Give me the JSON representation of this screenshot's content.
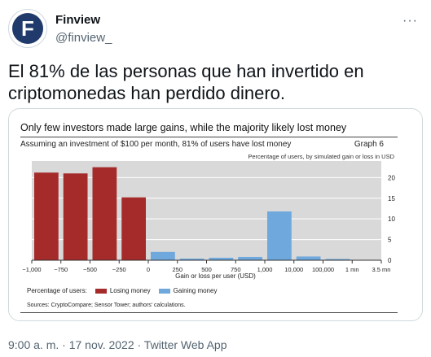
{
  "author": {
    "name": "Finview",
    "handle": "@finview_",
    "avatar_letter": "F"
  },
  "more_icon": "···",
  "tweet_text": "El 81% de las personas que han invertido en criptomonedas han perdido dinero.",
  "meta": "9:00 a. m. · 17 nov. 2022 · Twitter Web App",
  "colors": {
    "losing": "#a52a2a",
    "gaining": "#6fa8dc",
    "plot_bg": "#d9d9d9"
  },
  "chart_data": {
    "type": "bar",
    "title": "Only few investors made large gains, while the majority likely lost money",
    "subtitle": "Assuming an investment of $100 per month, 81% of users have lost money",
    "graph_label": "Graph 6",
    "unit_label": "Percentage of users, by simulated gain or loss in USD",
    "xlabel": "Gain or loss per user (USD)",
    "x_ticks": [
      "−1,000",
      "−750",
      "−500",
      "−250",
      "0",
      "250",
      "500",
      "750",
      "1,000",
      "10,000",
      "100,000",
      "1 mn",
      "3.5 mn"
    ],
    "y_ticks": [
      "20",
      "15",
      "10",
      "5",
      "0"
    ],
    "ylim": [
      0,
      24
    ],
    "series": [
      {
        "name": "Losing money",
        "values": [
          21.2,
          21.0,
          22.5,
          15.2,
          null,
          null,
          null,
          null,
          null,
          null,
          null,
          null
        ]
      },
      {
        "name": "Gaining money",
        "values": [
          null,
          null,
          null,
          null,
          2.0,
          0.4,
          0.6,
          0.8,
          11.8,
          0.9,
          0.3,
          0.1
        ]
      }
    ],
    "legend_prefix": "Percentage of users:",
    "source": "Sources: CryptoCompare; Sensor Tower; authors' calculations.",
    "grid": true
  }
}
